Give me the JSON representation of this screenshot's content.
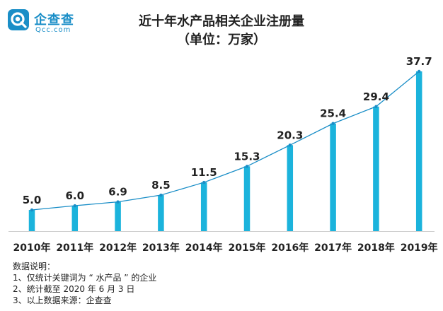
{
  "brand": {
    "name": "企查查",
    "domain": "Qcc.com",
    "color": "#1a8ec7"
  },
  "chart_data": {
    "type": "bar",
    "title": "近十年水产品相关企业注册量",
    "subtitle": "（单位：万家）",
    "categories": [
      "2010年",
      "2011年",
      "2012年",
      "2013年",
      "2014年",
      "2015年",
      "2016年",
      "2017年",
      "2018年",
      "2019年"
    ],
    "values": [
      5.0,
      6.0,
      6.9,
      8.5,
      11.5,
      15.3,
      20.3,
      25.4,
      29.4,
      37.7
    ],
    "value_labels": [
      "5.0",
      "6.0",
      "6.9",
      "8.5",
      "11.5",
      "15.3",
      "20.3",
      "25.4",
      "29.4",
      "37.7"
    ],
    "ylim": [
      0,
      37.7
    ],
    "bar_color": "#1bb3dc",
    "line_color": "#1a8ec7",
    "trend_line": true,
    "grid": false
  },
  "notes": {
    "heading": "数据说明：",
    "items": [
      "1、仅统计关键词为 “ 水产品 ” 的企业",
      "2、统计截至 2020 年 6 月 3 日",
      "3、以上数据来源：企查查"
    ]
  }
}
